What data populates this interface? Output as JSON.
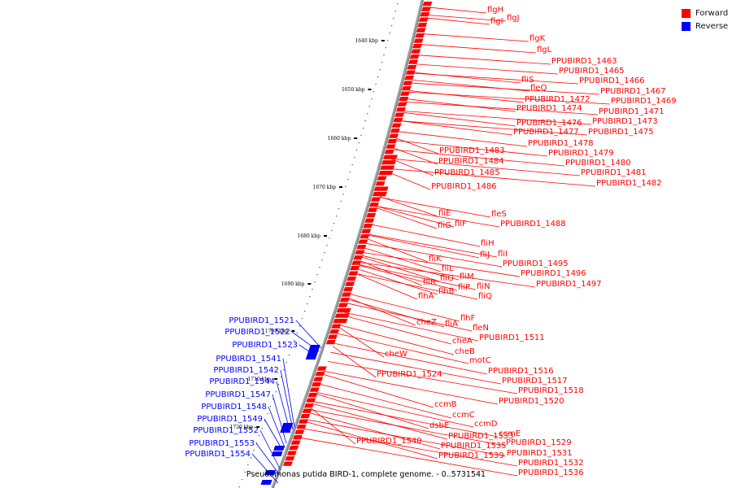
{
  "caption": "Pseudomonas putida BIRD-1, complete genome. - 0..5731541",
  "legend": [
    {
      "label": "Forward",
      "color": "#ff0000"
    },
    {
      "label": "Reverse",
      "color": "#0000ff"
    }
  ],
  "colors": {
    "forward": "#ff0000",
    "reverse": "#0000ff",
    "axis": "#a0a0a0"
  },
  "ticks": [
    "1640 kbp",
    "1650 kbp",
    "1660 kbp",
    "1670 kbp",
    "1680 kbp",
    "1690 kbp",
    "1700 kbp",
    "1710 kbp",
    "1720 kbp"
  ],
  "forward_labels": [
    "flgH",
    "flgI",
    "flgJ",
    "flgK",
    "flgL",
    "PPUBIRD1_1463",
    "PPUBIRD1_1465",
    "fliS",
    "PPUBIRD1_1466",
    "fleQ",
    "PPUBIRD1_1467",
    "PPUBIRD1_1472",
    "PPUBIRD1_1469",
    "PPUBIRD1_1474",
    "PPUBIRD1_1471",
    "PPUBIRD1_1476",
    "PPUBIRD1_1473",
    "PPUBIRD1_1477",
    "PPUBIRD1_1475",
    "PPUBIRD1_1478",
    "PPUBIRD1_1483",
    "PPUBIRD1_1479",
    "PPUBIRD1_1484",
    "PPUBIRD1_1480",
    "PPUBIRD1_1485",
    "PPUBIRD1_1481",
    "PPUBIRD1_1482",
    "PPUBIRD1_1486",
    "fliE",
    "fleS",
    "fliG",
    "fliF",
    "PPUBIRD1_1488",
    "fliH",
    "fliJ",
    "fliI",
    "fliK",
    "PPUBIRD1_1495",
    "fliL",
    "PPUBIRD1_1496",
    "fliO",
    "fliM",
    "fliR",
    "fliN",
    "PPUBIRD1_1497",
    "fliP",
    "flhB",
    "fliQ",
    "flhA",
    "flhF",
    "cheZ",
    "fliA",
    "fleN",
    "cheA",
    "PPUBIRD1_1511",
    "cheB",
    "cheW",
    "motC",
    "PPUBIRD1_1516",
    "PPUBIRD1_1524",
    "PPUBIRD1_1517",
    "PPUBIRD1_1518",
    "PPUBIRD1_1520",
    "ccmB",
    "ccmC",
    "ccmD",
    "dsbE",
    "ccmE",
    "PPUBIRD1_1533",
    "PPUBIRD1_1540",
    "PPUBIRD1_1529",
    "PPUBIRD1_1535",
    "PPUBIRD1_1531",
    "PPUBIRD1_1539",
    "PPUBIRD1_1532",
    "PPUBIRD1_1536"
  ],
  "reverse_labels": [
    "PPUBIRD1_1521",
    "PPUBIRD1_1522",
    "PPUBIRD1_1523",
    "PPUBIRD1_1541",
    "PPUBIRD1_1542",
    "PPUBIRD1_1544",
    "PPUBIRD1_1547",
    "PPUBIRD1_1548",
    "PPUBIRD1_1549",
    "PPUBIRD1_1552",
    "PPUBIRD1_1553",
    "PPUBIRD1_1554"
  ]
}
